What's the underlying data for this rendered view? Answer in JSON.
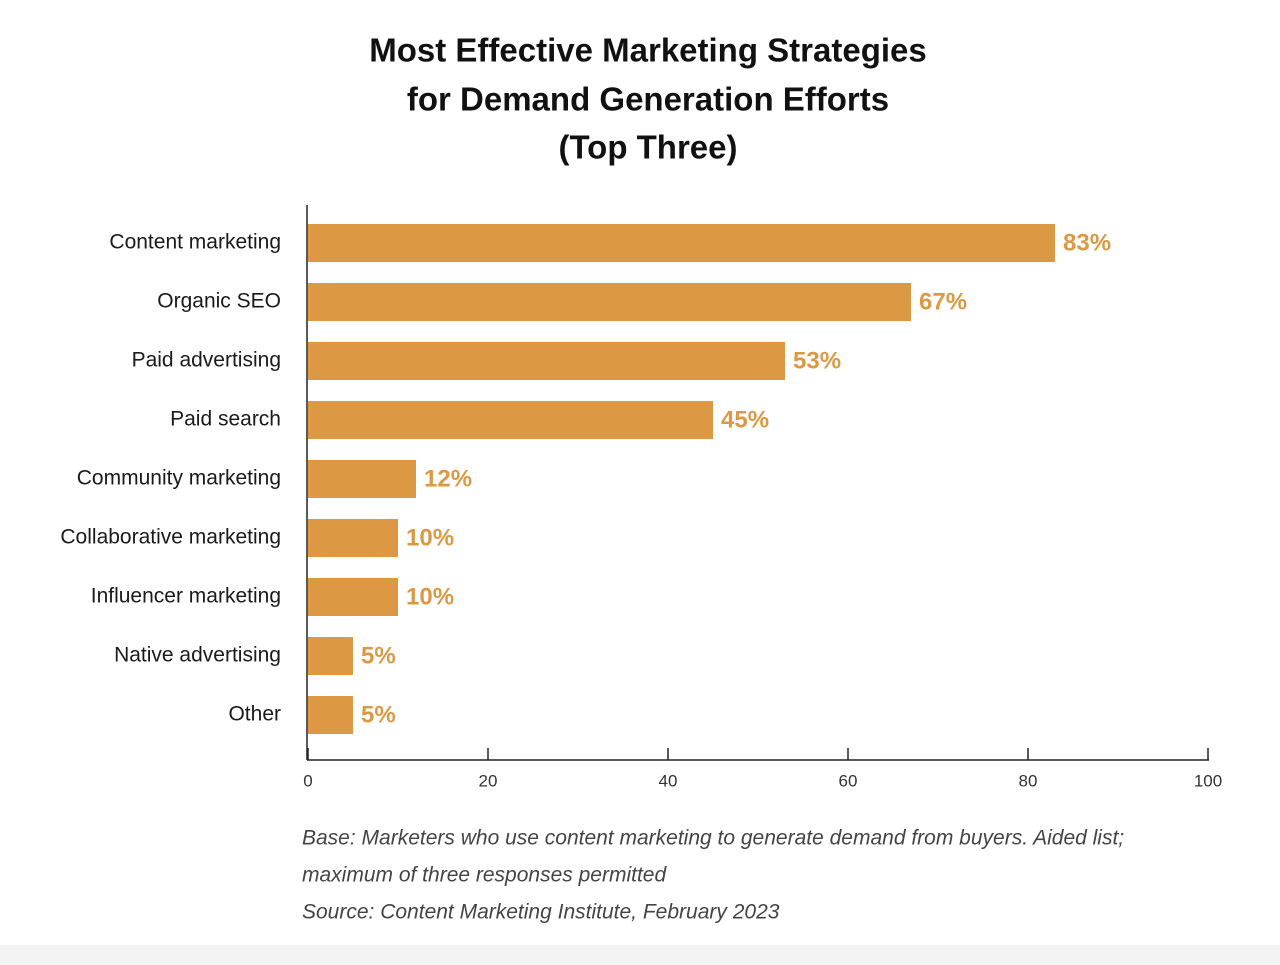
{
  "chart_data": {
    "type": "hbar",
    "title": [
      "Most Effective Marketing Strategies",
      "for Demand Generation Efforts"
    ],
    "subtitle": "(Top Three)",
    "categories": [
      "Content marketing",
      "Organic SEO",
      "Paid advertising",
      "Paid search",
      "Community marketing",
      "Collaborative marketing",
      "Influencer marketing",
      "Native advertising",
      "Other"
    ],
    "values": [
      83,
      67,
      53,
      45,
      12,
      10,
      10,
      5,
      5
    ],
    "value_labels": [
      "83%",
      "67%",
      "53%",
      "45%",
      "12%",
      "10%",
      "10%",
      "5%",
      "5%"
    ],
    "color": "#dd9843",
    "xlim": [
      0,
      100
    ],
    "xticks": [
      0,
      20,
      40,
      60,
      80,
      100
    ],
    "notes": [
      "Base: Marketers who use content marketing to generate demand from buyers. Aided list;",
      "maximum of three responses permitted",
      "Source: Content Marketing Institute, February 2023"
    ]
  }
}
